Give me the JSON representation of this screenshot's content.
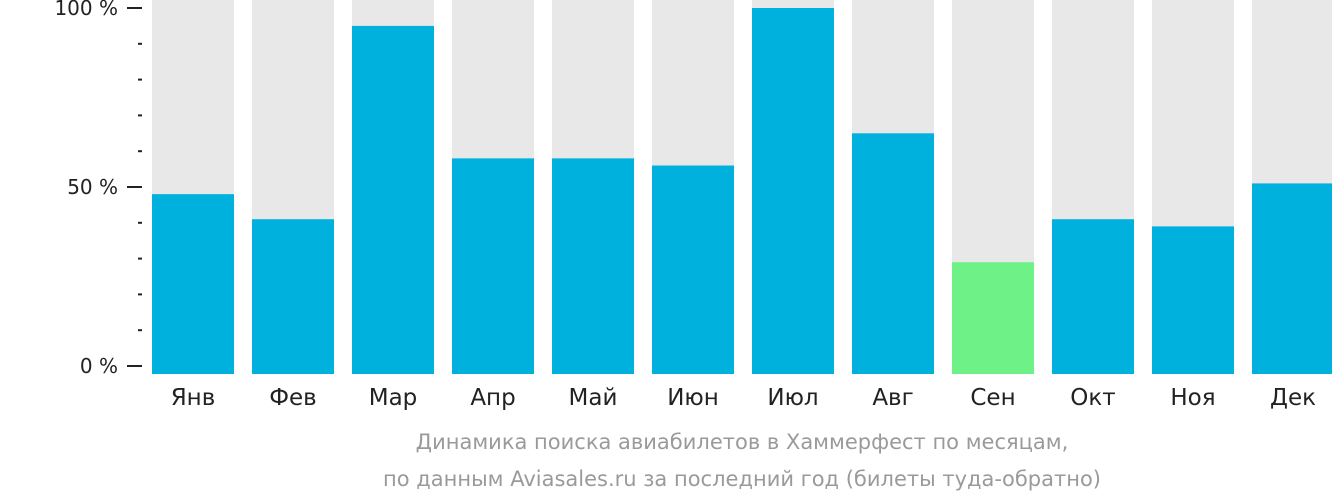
{
  "chart_data": {
    "type": "bar",
    "categories": [
      "Янв",
      "Фев",
      "Мар",
      "Апр",
      "Май",
      "Июн",
      "Июл",
      "Авг",
      "Сен",
      "Окт",
      "Ноя",
      "Дек"
    ],
    "values": [
      48,
      41,
      95,
      58,
      58,
      56,
      100,
      65,
      29,
      41,
      39,
      51
    ],
    "highlight_index": 8,
    "ylim": [
      0,
      100
    ],
    "yticks": [
      {
        "value": 0,
        "label": "0 %"
      },
      {
        "value": 50,
        "label": "50 %"
      },
      {
        "value": 100,
        "label": "100 %"
      }
    ],
    "minor_tick_step": 10,
    "title": "Динамика поиска авиабилетов в Хаммерфест по месяцам,",
    "subtitle": "по данным Aviasales.ru за последний год (билеты туда-обратно)",
    "colors": {
      "bar": "#00b0dd",
      "highlight": "#6ef287",
      "background_bar": "#e8e8e8",
      "axis": "#222222",
      "caption": "#9a9a9a"
    }
  }
}
